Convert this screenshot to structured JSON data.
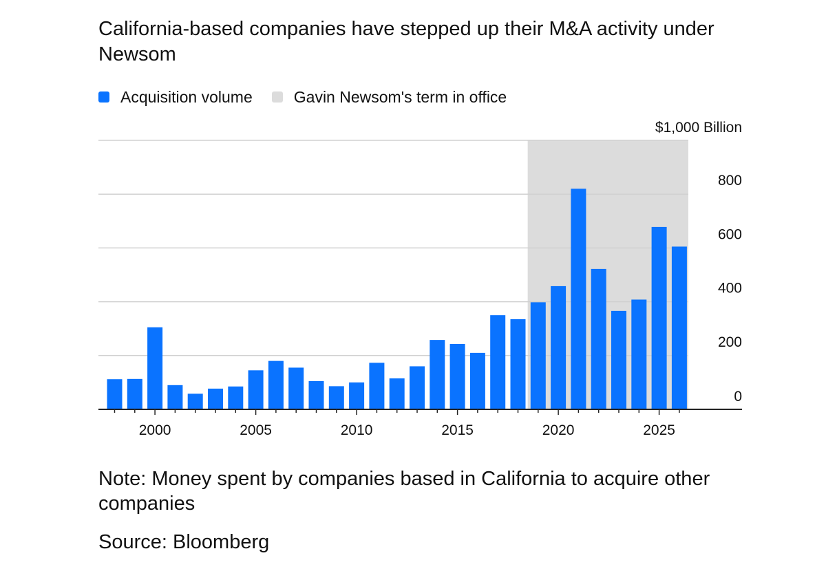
{
  "title": "California-based companies have stepped up their M&A activity under Newsom",
  "legend": {
    "series_label": "Acquisition volume",
    "shade_label": "Gavin Newsom's term in office"
  },
  "colors": {
    "bar": "#0a73ff",
    "shade": "#dcdcdc",
    "grid": "#d0d0d0",
    "axis": "#222222",
    "text": "#111111"
  },
  "chart_data": {
    "type": "bar",
    "title": "California-based companies have stepped up their M&A activity under Newsom",
    "xlabel": "",
    "ylabel": "",
    "unit_label": "$1,000 Billion",
    "categories": [
      1998,
      1999,
      2000,
      2001,
      2002,
      2003,
      2004,
      2005,
      2006,
      2007,
      2008,
      2009,
      2010,
      2011,
      2012,
      2013,
      2014,
      2015,
      2016,
      2017,
      2018,
      2019,
      2020,
      2021,
      2022,
      2023,
      2024,
      2025,
      2026
    ],
    "series": [
      {
        "name": "Acquisition volume",
        "values": [
          112,
          113,
          305,
          90,
          58,
          77,
          85,
          145,
          180,
          155,
          105,
          86,
          100,
          173,
          115,
          160,
          258,
          243,
          210,
          350,
          335,
          398,
          458,
          820,
          522,
          366,
          408,
          678,
          605
        ]
      }
    ],
    "shaded_region": {
      "label": "Gavin Newsom's term in office",
      "start": 2019,
      "end": 2026
    },
    "ylim": [
      0,
      1000
    ],
    "y_ticks": [
      0,
      200,
      400,
      600,
      800
    ],
    "y_tick_labels": [
      "0",
      "200",
      "400",
      "600",
      "800"
    ],
    "x_ticks": [
      2000,
      2005,
      2010,
      2015,
      2020,
      2025
    ],
    "x_tick_labels": [
      "2000",
      "2005",
      "2010",
      "2015",
      "2020",
      "2025"
    ],
    "grid": true,
    "y_axis_side": "right"
  },
  "note": "Note: Money spent by companies based in California to acquire other companies",
  "source": "Source: Bloomberg"
}
